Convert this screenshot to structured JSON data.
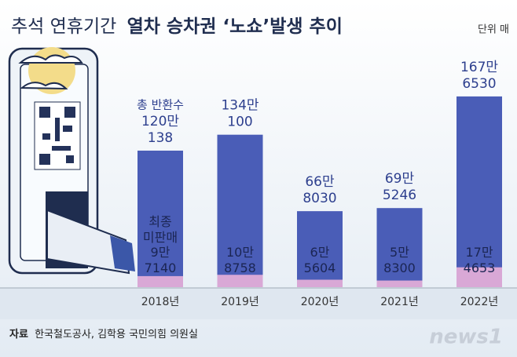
{
  "chart_data": {
    "type": "bar",
    "title_parts": [
      "추석 연휴기간",
      "열차 승차권 ‘노쇼’발생 추이"
    ],
    "unit": "단위 매",
    "categories": [
      "2018년",
      "2019년",
      "2020년",
      "2021년",
      "2022년"
    ],
    "series": [
      {
        "name": "총 반환수",
        "color": "#4a5db7",
        "values": [
          1200138,
          1340100,
          668030,
          695246,
          1676530
        ],
        "value_labels": [
          "120만\n138",
          "134만\n100",
          "66만\n8030",
          "69만\n5246",
          "167만\n6530"
        ]
      },
      {
        "name": "최종\n미판매",
        "color": "#d9a8d6",
        "values": [
          97140,
          108758,
          65604,
          58300,
          174653
        ],
        "value_labels": [
          "9만\n7140",
          "10만\n8758",
          "6만\n5604",
          "5만\n8300",
          "17만\n4653"
        ]
      }
    ],
    "source_label": "자료",
    "source": "한국철도공사, 김학용 국민의힘 의원실",
    "logo": "news1"
  }
}
